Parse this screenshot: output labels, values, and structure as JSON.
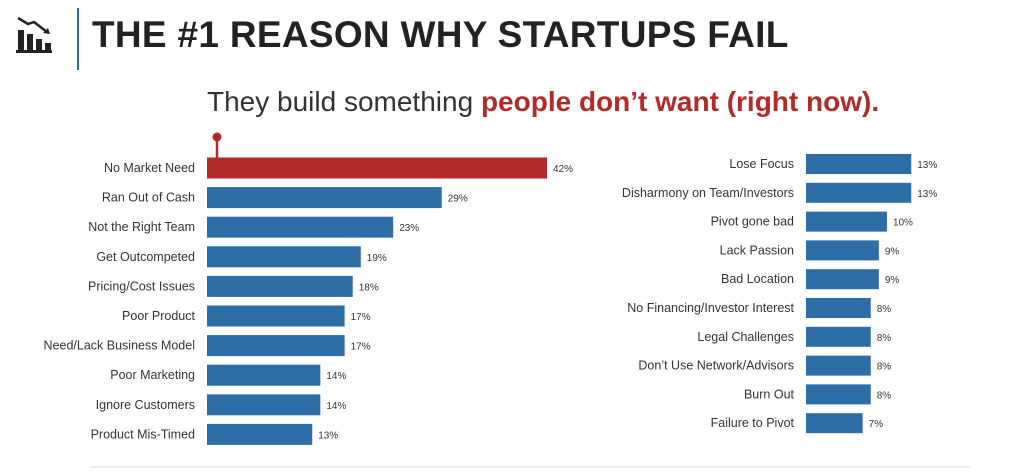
{
  "header": {
    "title": "THE #1 REASON WHY STARTUPS FAIL",
    "icon": "declining-bar-chart-icon",
    "subtitle_plain": "They build something ",
    "subtitle_highlight": "people don’t want (right now)."
  },
  "colors": {
    "primary_bar": "#2e6ea6",
    "highlight_bar": "#b22a2a",
    "text": "#333333"
  },
  "chart_data": [
    {
      "type": "bar",
      "orientation": "horizontal",
      "categories": [
        "No Market Need",
        "Ran Out of Cash",
        "Not the Right Team",
        "Get Outcompeted",
        "Pricing/Cost Issues",
        "Poor Product",
        "Need/Lack Business Model",
        "Poor Marketing",
        "Ignore Customers",
        "Product Mis-Timed"
      ],
      "values": [
        42,
        29,
        23,
        19,
        18,
        17,
        17,
        14,
        14,
        13
      ],
      "data_labels": [
        "42%",
        "29%",
        "23%",
        "19%",
        "18%",
        "17%",
        "17%",
        "14%",
        "14%",
        "13%"
      ],
      "highlight_index": 0,
      "xlim": [
        0,
        42
      ],
      "grid": false
    },
    {
      "type": "bar",
      "orientation": "horizontal",
      "categories": [
        "Lose Focus",
        "Disharmony on Team/Investors",
        "Pivot gone bad",
        "Lack Passion",
        "Bad Location",
        "No Financing/Investor Interest",
        "Legal Challenges",
        "Don’t Use Network/Advisors",
        "Burn Out",
        "Failure to Pivot"
      ],
      "values": [
        13,
        13,
        10,
        9,
        9,
        8,
        8,
        8,
        8,
        7
      ],
      "data_labels": [
        "13%",
        "13%",
        "10%",
        "9%",
        "9%",
        "8%",
        "8%",
        "8%",
        "8%",
        "7%"
      ],
      "xlim": [
        0,
        42
      ],
      "grid": false
    }
  ]
}
